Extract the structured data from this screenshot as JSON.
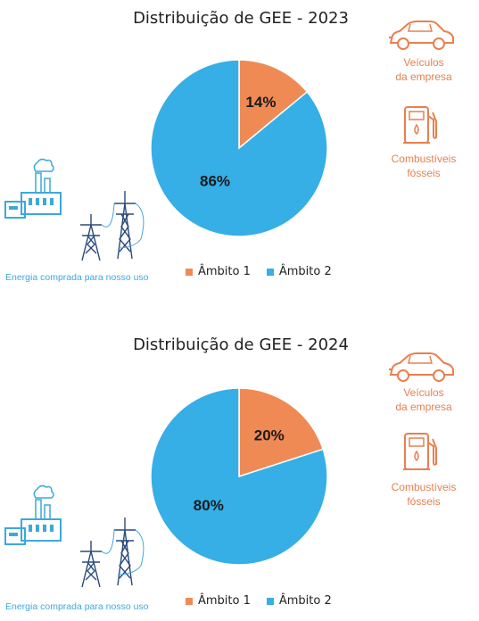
{
  "colors": {
    "ambito1": "#f08a55",
    "ambito2": "#36aee6",
    "icon_orange": "#e8804e",
    "icon_blue": "#3da8dc"
  },
  "chart_data": [
    {
      "type": "pie",
      "title": "Distribuição de GEE -  2023",
      "labels": [
        "Âmbito 1",
        "Âmbito 2"
      ],
      "values": [
        14,
        86
      ],
      "data_labels": [
        "14%",
        "86%"
      ],
      "legend": "bottom"
    },
    {
      "type": "pie",
      "title": "Distribuição de GEE -  2024",
      "labels": [
        "Âmbito 1",
        "Âmbito 2"
      ],
      "values": [
        20,
        80
      ],
      "data_labels": [
        "20%",
        "80%"
      ],
      "legend": "bottom"
    }
  ],
  "icons": {
    "car": "car-icon",
    "fuel": "fuel-pump-icon",
    "factory": "factory-icon",
    "pylon": "power-pylon-icon"
  },
  "labels": {
    "vehicles_line1": "Veículos",
    "vehicles_line2": "da empresa",
    "fuels_line1": "Combustíveis",
    "fuels_line2": "fósseis",
    "energy": "Energia comprada para nosso uso"
  }
}
